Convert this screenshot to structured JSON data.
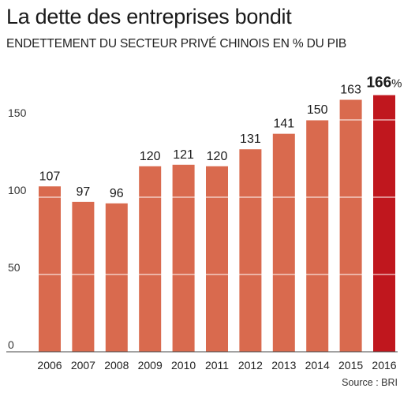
{
  "header": {
    "title": "La dette des entreprises bondit",
    "subtitle": "ENDETTEMENT DU SECTEUR PRIVÉ CHINOIS EN % DU PIB"
  },
  "footer": {
    "source": "Source : BRI"
  },
  "colors": {
    "bar": "#d96a4e",
    "highlight": "#c0171e",
    "grid": "#ffffff",
    "axis": "#444444"
  },
  "chart_data": {
    "type": "bar",
    "categories": [
      "2006",
      "2007",
      "2008",
      "2009",
      "2010",
      "2011",
      "2012",
      "2013",
      "2014",
      "2015",
      "2016"
    ],
    "values": [
      107,
      97,
      96,
      120,
      121,
      120,
      131,
      141,
      150,
      163,
      166
    ],
    "value_labels": [
      "107",
      "97",
      "96",
      "120",
      "121",
      "120",
      "131",
      "141",
      "150",
      "163",
      "166%"
    ],
    "highlight_index": 10,
    "title": "La dette des entreprises bondit",
    "subtitle": "ENDETTEMENT DU SECTEUR PRIVÉ CHINOIS EN % DU PIB",
    "xlabel": "",
    "ylabel": "",
    "ylim": [
      0,
      175
    ],
    "yticks": [
      0,
      50,
      100,
      150
    ],
    "grid": true
  }
}
